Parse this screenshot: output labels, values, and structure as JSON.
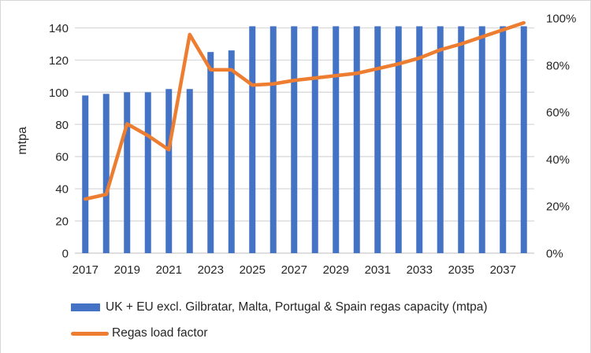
{
  "chart_data": {
    "type": "bar-line-combo",
    "x": [
      2017,
      2018,
      2019,
      2020,
      2021,
      2022,
      2023,
      2024,
      2025,
      2026,
      2027,
      2028,
      2029,
      2030,
      2031,
      2032,
      2033,
      2034,
      2035,
      2036,
      2037,
      2038
    ],
    "x_tick_labels": [
      "2017",
      "2019",
      "2021",
      "2023",
      "2025",
      "2027",
      "2029",
      "2031",
      "2033",
      "2035",
      "2037"
    ],
    "series": [
      {
        "name": "UK + EU excl. Gilbratar, Malta, Portugal & Spain regas capacity (mtpa)",
        "type": "bar",
        "axis": "left",
        "color": "#4472C4",
        "values": [
          98,
          99,
          100,
          100,
          102,
          102,
          125,
          126,
          141,
          141,
          141,
          141,
          141,
          141,
          141,
          141,
          141,
          141,
          141,
          141,
          141,
          141
        ]
      },
      {
        "name": "Regas load factor",
        "type": "line",
        "axis": "right",
        "unit": "%",
        "color": "#ED7D31",
        "values": [
          23,
          25,
          55,
          50,
          44,
          93,
          78,
          78,
          71.5,
          72,
          73.5,
          74.5,
          75.5,
          76.5,
          78.5,
          80.5,
          83,
          86.5,
          89,
          92,
          95,
          98
        ]
      }
    ],
    "left_axis": {
      "title": "mtpa",
      "min": 0,
      "max": 140,
      "ticks": [
        0,
        20,
        40,
        60,
        80,
        100,
        120,
        140
      ]
    },
    "right_axis": {
      "min": "0%",
      "max": "100%",
      "ticks": [
        "0%",
        "20%",
        "40%",
        "60%",
        "80%",
        "100%"
      ]
    },
    "grid": true,
    "legend_position": "bottom-left",
    "colors": {
      "gridline": "#D9D9D9",
      "axis_line": "#C9C9C9",
      "text": "#262626",
      "background": "#FFFFFF"
    }
  },
  "legend": {
    "capacity_label": "UK + EU excl. Gilbratar, Malta, Portugal & Spain regas capacity (mtpa)",
    "load_factor_label": "Regas load factor"
  }
}
